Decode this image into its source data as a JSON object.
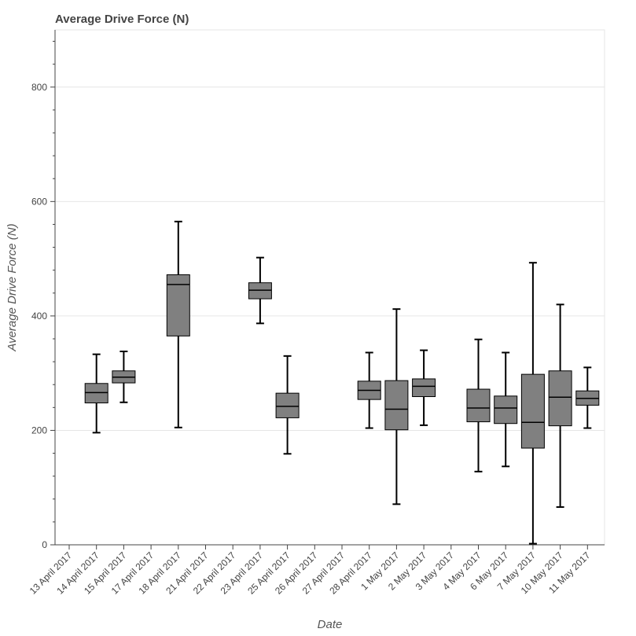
{
  "chart_data": {
    "type": "box",
    "title": "Average Drive Force (N)",
    "xlabel": "Date",
    "ylabel": "Average Drive Force (N)",
    "ylim": [
      0,
      900
    ],
    "yticks": [
      0,
      200,
      400,
      600,
      800
    ],
    "grid": "horizontal",
    "colors": {
      "box_fill": "#808080",
      "stroke": "#000000",
      "grid": "#e6e6e6",
      "axis": "#444444"
    },
    "categories": [
      "13 April 2017",
      "14 April 2017",
      "15 April 2017",
      "17 April 2017",
      "18 April 2017",
      "21 April 2017",
      "22 April 2017",
      "23 April 2017",
      "25 April 2017",
      "26 April 2017",
      "27 April 2017",
      "28 April 2017",
      "1 May 2017",
      "2 May 2017",
      "3 May 2017",
      "4 May 2017",
      "6 May 2017",
      "7 May 2017",
      "10 May 2017",
      "11 May 2017"
    ],
    "boxes": [
      {
        "category": "14 April 2017",
        "min": 196,
        "q1": 248,
        "median": 266,
        "q3": 282,
        "max": 333
      },
      {
        "category": "15 April 2017",
        "min": 249,
        "q1": 283,
        "median": 293,
        "q3": 304,
        "max": 338
      },
      {
        "category": "18 April 2017",
        "min": 205,
        "q1": 365,
        "median": 455,
        "q3": 472,
        "max": 565
      },
      {
        "category": "23 April 2017",
        "min": 387,
        "q1": 430,
        "median": 445,
        "q3": 458,
        "max": 502
      },
      {
        "category": "25 April 2017",
        "min": 159,
        "q1": 222,
        "median": 242,
        "q3": 265,
        "max": 330
      },
      {
        "category": "28 April 2017",
        "min": 204,
        "q1": 254,
        "median": 270,
        "q3": 286,
        "max": 336
      },
      {
        "category": "1 May 2017",
        "min": 71,
        "q1": 201,
        "median": 237,
        "q3": 287,
        "max": 412
      },
      {
        "category": "2 May 2017",
        "min": 209,
        "q1": 259,
        "median": 277,
        "q3": 290,
        "max": 340
      },
      {
        "category": "4 May 2017",
        "min": 128,
        "q1": 215,
        "median": 239,
        "q3": 272,
        "max": 359
      },
      {
        "category": "6 May 2017",
        "min": 137,
        "q1": 212,
        "median": 239,
        "q3": 260,
        "max": 336
      },
      {
        "category": "7 May 2017",
        "min": 2,
        "q1": 169,
        "median": 214,
        "q3": 298,
        "max": 493
      },
      {
        "category": "10 May 2017",
        "min": 66,
        "q1": 208,
        "median": 258,
        "q3": 304,
        "max": 420
      },
      {
        "category": "11 May 2017",
        "min": 204,
        "q1": 244,
        "median": 256,
        "q3": 269,
        "max": 310
      }
    ]
  }
}
